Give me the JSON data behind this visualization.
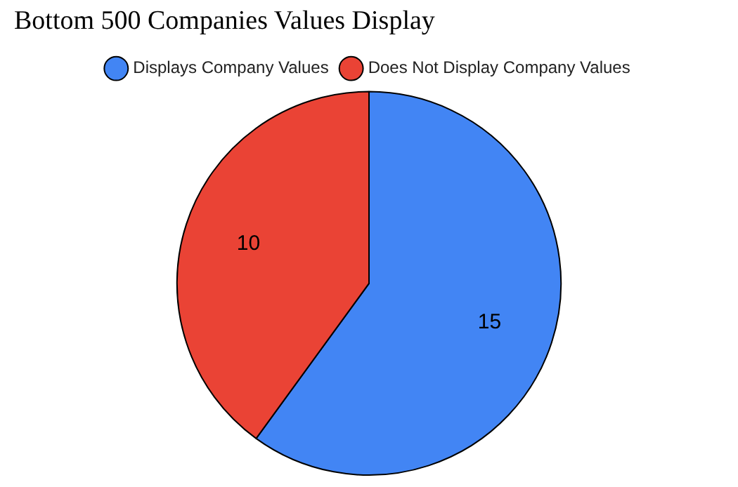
{
  "chart_data": {
    "type": "pie",
    "title": "Bottom 500 Companies Values Display",
    "categories": [
      "Displays Company Values",
      "Does Not Display Company Values"
    ],
    "values": [
      15,
      10
    ],
    "colors": [
      "#4285f4",
      "#ea4335"
    ],
    "legend": "top",
    "data_labels": true
  }
}
